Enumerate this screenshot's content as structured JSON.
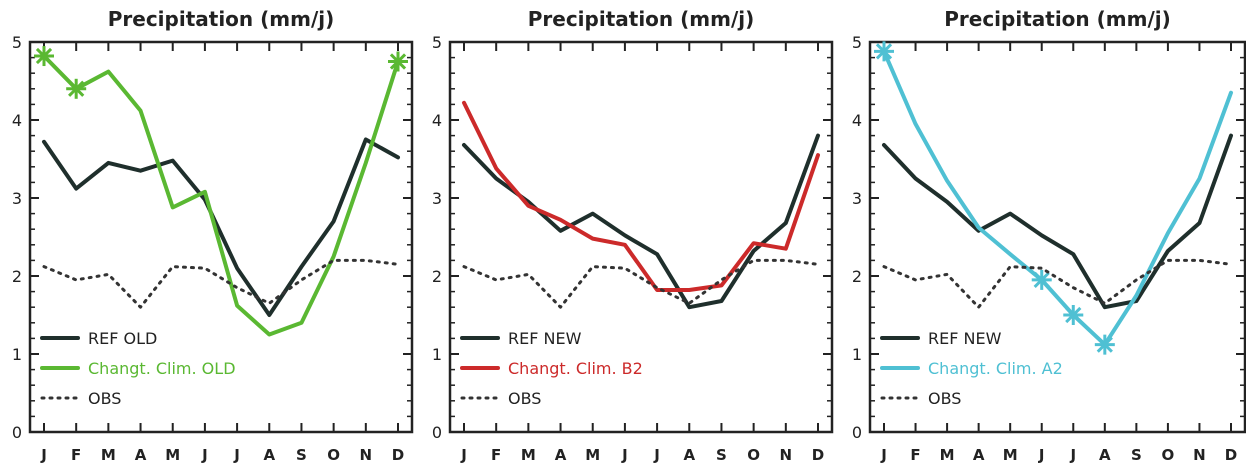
{
  "chart_data": [
    {
      "type": "line",
      "title": "Precipitation (mm/j)",
      "categories": [
        "J",
        "F",
        "M",
        "A",
        "M",
        "J",
        "J",
        "A",
        "S",
        "O",
        "N",
        "D"
      ],
      "ylim": [
        0,
        5
      ],
      "yticks": [
        "0",
        "1",
        "2",
        "3",
        "4",
        "5"
      ],
      "grid": false,
      "legend_position": "bottom-left",
      "series": [
        {
          "name": "REF OLD",
          "color": "#1f2f2c",
          "style": "solid",
          "values": [
            3.72,
            3.12,
            3.45,
            3.35,
            3.48,
            2.98,
            2.1,
            1.5,
            2.12,
            2.7,
            3.75,
            3.52
          ]
        },
        {
          "name": "Changt. Clim. OLD",
          "color": "#5ab832",
          "style": "solid",
          "markers": [
            0,
            1,
            11
          ],
          "values": [
            4.82,
            4.4,
            4.62,
            4.12,
            2.88,
            3.08,
            1.62,
            1.25,
            1.4,
            2.25,
            3.45,
            4.75
          ]
        },
        {
          "name": "OBS",
          "color": "#333333",
          "style": "dotted",
          "values": [
            2.12,
            1.95,
            2.02,
            1.6,
            2.12,
            2.1,
            1.85,
            1.65,
            1.95,
            2.2,
            2.2,
            2.15
          ]
        }
      ]
    },
    {
      "type": "line",
      "title": "Precipitation (mm/j)",
      "categories": [
        "J",
        "F",
        "M",
        "A",
        "M",
        "J",
        "J",
        "A",
        "S",
        "O",
        "N",
        "D"
      ],
      "ylim": [
        0,
        5
      ],
      "yticks": [
        "0",
        "1",
        "2",
        "3",
        "4",
        "5"
      ],
      "grid": false,
      "legend_position": "bottom-left",
      "series": [
        {
          "name": "REF NEW",
          "color": "#1f2f2c",
          "style": "solid",
          "values": [
            3.68,
            3.25,
            2.95,
            2.58,
            2.8,
            2.52,
            2.28,
            1.6,
            1.68,
            2.32,
            2.68,
            3.8
          ]
        },
        {
          "name": "Changt. Clim. B2",
          "color": "#cc2a2a",
          "style": "solid",
          "values": [
            4.22,
            3.38,
            2.9,
            2.72,
            2.48,
            2.4,
            1.82,
            1.82,
            1.88,
            2.42,
            2.35,
            3.55
          ]
        },
        {
          "name": "OBS",
          "color": "#333333",
          "style": "dotted",
          "values": [
            2.12,
            1.95,
            2.02,
            1.6,
            2.12,
            2.1,
            1.85,
            1.65,
            1.95,
            2.2,
            2.2,
            2.15
          ]
        }
      ]
    },
    {
      "type": "line",
      "title": "Precipitation (mm/j)",
      "categories": [
        "J",
        "F",
        "M",
        "A",
        "M",
        "J",
        "J",
        "A",
        "S",
        "O",
        "N",
        "D"
      ],
      "ylim": [
        0,
        5
      ],
      "yticks": [
        "0",
        "1",
        "2",
        "3",
        "4",
        "5"
      ],
      "grid": false,
      "legend_position": "bottom-left",
      "series": [
        {
          "name": "REF NEW",
          "color": "#1f2f2c",
          "style": "solid",
          "values": [
            3.68,
            3.25,
            2.95,
            2.58,
            2.8,
            2.52,
            2.28,
            1.6,
            1.68,
            2.32,
            2.68,
            3.8
          ]
        },
        {
          "name": "Changt. Clim. A2",
          "color": "#4fc0d3",
          "style": "solid",
          "markers": [
            0,
            5,
            6,
            7
          ],
          "values": [
            4.88,
            3.95,
            3.22,
            2.62,
            2.28,
            1.95,
            1.5,
            1.12,
            1.75,
            2.55,
            3.25,
            4.35
          ]
        },
        {
          "name": "OBS",
          "color": "#333333",
          "style": "dotted",
          "values": [
            2.12,
            1.95,
            2.02,
            1.6,
            2.12,
            2.1,
            1.85,
            1.65,
            1.95,
            2.2,
            2.2,
            2.15
          ]
        }
      ]
    }
  ]
}
